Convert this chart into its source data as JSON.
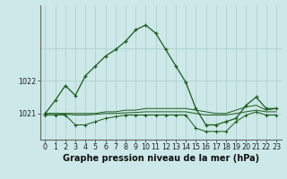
{
  "title": "Graphe pression niveau de la mer (hPa)",
  "hours": [
    0,
    1,
    2,
    3,
    4,
    5,
    6,
    7,
    8,
    9,
    10,
    11,
    12,
    13,
    14,
    15,
    16,
    17,
    18,
    19,
    20,
    21,
    22,
    23
  ],
  "main_line": [
    1021.0,
    1021.4,
    1021.85,
    1021.55,
    1022.15,
    1022.45,
    1022.75,
    1022.95,
    1023.2,
    1023.55,
    1023.7,
    1023.45,
    1022.95,
    1022.45,
    1021.95,
    1021.15,
    1020.65,
    1020.65,
    1020.75,
    1020.85,
    1021.25,
    1021.5,
    1021.15,
    1021.15
  ],
  "min_line": [
    1020.95,
    1020.95,
    1020.95,
    1020.65,
    1020.65,
    1020.75,
    1020.85,
    1020.9,
    1020.95,
    1020.95,
    1020.95,
    1020.95,
    1020.95,
    1020.95,
    1020.95,
    1020.55,
    1020.45,
    1020.45,
    1020.45,
    1020.75,
    1020.95,
    1021.05,
    1020.95,
    1020.95
  ],
  "max_line": [
    1021.0,
    1021.0,
    1021.0,
    1021.0,
    1021.0,
    1021.0,
    1021.05,
    1021.05,
    1021.1,
    1021.1,
    1021.15,
    1021.15,
    1021.15,
    1021.15,
    1021.15,
    1021.1,
    1021.05,
    1021.0,
    1021.0,
    1021.1,
    1021.2,
    1021.25,
    1021.1,
    1021.15
  ],
  "mean_line": [
    1021.0,
    1021.0,
    1020.98,
    1020.95,
    1020.95,
    1020.97,
    1021.0,
    1021.0,
    1021.02,
    1021.03,
    1021.05,
    1021.05,
    1021.05,
    1021.05,
    1021.05,
    1021.0,
    1020.95,
    1020.95,
    1020.95,
    1021.0,
    1021.05,
    1021.1,
    1021.05,
    1021.05
  ],
  "bg_color": "#cce8e8",
  "line_color": "#1a5c1a",
  "grid_color": "#aacccc",
  "ylim_min": 1020.2,
  "ylim_max": 1024.3,
  "yticks": [
    1021,
    1022
  ],
  "ytick_labels": [
    "1021",
    "1022"
  ],
  "title_fontsize": 7.0,
  "tick_fontsize": 5.8
}
